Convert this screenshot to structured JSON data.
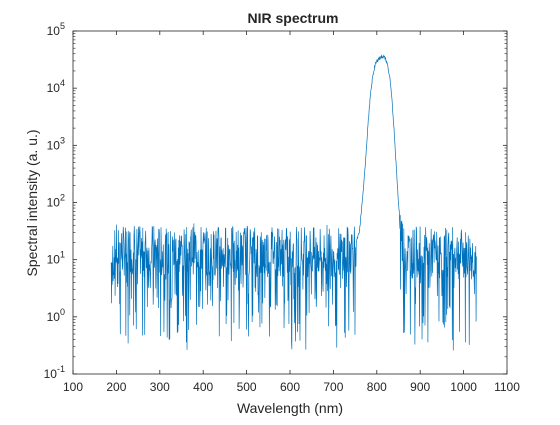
{
  "chart_data": {
    "type": "line",
    "title": "NIR spectrum",
    "xlabel": "Wavelength (nm)",
    "ylabel": "Spectral intensity (a. u.)",
    "xlim": [
      100,
      1100
    ],
    "ylim": [
      0.1,
      100000
    ],
    "yscale": "log",
    "grid": false,
    "legend": "none",
    "x_ticks": [
      "100",
      "200",
      "300",
      "400",
      "500",
      "600",
      "700",
      "800",
      "900",
      "1000",
      "1100"
    ],
    "x_tick_values": [
      100,
      200,
      300,
      400,
      500,
      600,
      700,
      800,
      900,
      1000,
      1100
    ],
    "y_ticks": [
      {
        "base": "10",
        "exp": "-1",
        "value": 0.1
      },
      {
        "base": "10",
        "exp": "0",
        "value": 1
      },
      {
        "base": "10",
        "exp": "1",
        "value": 10
      },
      {
        "base": "10",
        "exp": "2",
        "value": 100
      },
      {
        "base": "10",
        "exp": "3",
        "value": 1000
      },
      {
        "base": "10",
        "exp": "4",
        "value": 10000
      },
      {
        "base": "10",
        "exp": "5",
        "value": 100000
      }
    ],
    "series": [
      {
        "color": "#0072BD",
        "x": [
          188,
          200,
          220,
          240,
          260,
          280,
          300,
          320,
          340,
          360,
          380,
          400,
          420,
          440,
          460,
          480,
          500,
          520,
          540,
          560,
          580,
          600,
          620,
          640,
          660,
          680,
          700,
          720,
          740,
          750,
          760,
          765,
          770,
          775,
          780,
          785,
          790,
          795,
          800,
          805,
          810,
          815,
          820,
          825,
          830,
          835,
          840,
          845,
          850,
          855,
          860,
          870,
          880,
          900,
          920,
          940,
          960,
          980,
          1000,
          1020,
          1030
        ],
        "y": [
          8,
          15,
          14,
          16,
          13,
          15,
          14,
          12,
          15,
          13,
          16,
          14,
          12,
          15,
          14,
          13,
          15,
          14,
          13,
          15,
          14,
          13,
          15,
          14,
          13,
          15,
          14,
          13,
          15,
          18,
          30,
          80,
          200,
          700,
          2500,
          7000,
          15000,
          24000,
          30000,
          33000,
          35000,
          36000,
          33000,
          25000,
          15000,
          6000,
          1800,
          400,
          100,
          35,
          18,
          14,
          13,
          14,
          13,
          12,
          14,
          13,
          12,
          11,
          11
        ],
        "noise_band": {
          "from": 188,
          "to": 750,
          "low": 0.25,
          "high": 60
        }
      }
    ]
  }
}
